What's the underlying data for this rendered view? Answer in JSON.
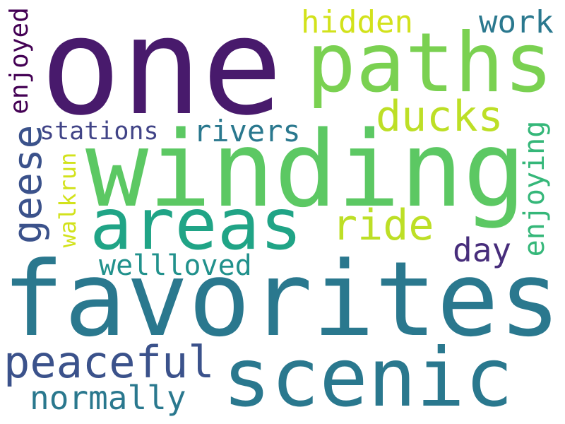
{
  "words": [
    {
      "text": "one",
      "color": "#481a6c"
    },
    {
      "text": "paths",
      "color": "#7ad151"
    },
    {
      "text": "winding",
      "color": "#5cc863"
    },
    {
      "text": "areas",
      "color": "#20a486"
    },
    {
      "text": "favorites",
      "color": "#2a788e"
    },
    {
      "text": "scenic",
      "color": "#2a788e"
    },
    {
      "text": "peaceful",
      "color": "#3b528b"
    },
    {
      "text": "normally",
      "color": "#2a788e"
    },
    {
      "text": "ducks",
      "color": "#bddf26"
    },
    {
      "text": "ride",
      "color": "#bddf26"
    },
    {
      "text": "hidden",
      "color": "#d2e21b"
    },
    {
      "text": "work",
      "color": "#2a788e"
    },
    {
      "text": "rivers",
      "color": "#2a788e"
    },
    {
      "text": "stations",
      "color": "#414487"
    },
    {
      "text": "day",
      "color": "#472d7b"
    },
    {
      "text": "wellloved",
      "color": "#21918c"
    },
    {
      "text": "geese",
      "color": "#3b528b"
    },
    {
      "text": "enjoyed",
      "color": "#440154"
    },
    {
      "text": "walkrun",
      "color": "#d2e21b"
    },
    {
      "text": "enjoying",
      "color": "#35b779"
    }
  ]
}
